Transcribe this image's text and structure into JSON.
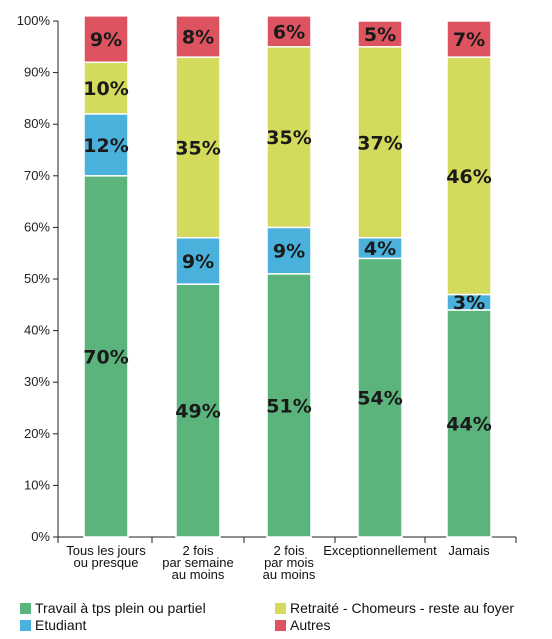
{
  "chart_data": {
    "type": "bar",
    "stacked": true,
    "categories": [
      [
        "Tous les jours",
        "ou presque"
      ],
      [
        "2 fois",
        "par semaine",
        "au moins"
      ],
      [
        "2 fois",
        "par mois",
        "au moins"
      ],
      [
        "Exceptionnellement"
      ],
      [
        "Jamais"
      ]
    ],
    "series": [
      {
        "name": "Travail à tps plein ou partiel",
        "color": "#5bb47b",
        "values": [
          70,
          49,
          51,
          54,
          44
        ],
        "labels": [
          "70%",
          "49%",
          "51%",
          "54%",
          "44%"
        ]
      },
      {
        "name": "Etudiant",
        "color": "#4ab1dc",
        "values": [
          12,
          9,
          9,
          4,
          3
        ],
        "labels": [
          "12%",
          "9%",
          "9%",
          "4%",
          "3%"
        ]
      },
      {
        "name": "Retraité - Chomeurs - reste au foyer",
        "color": "#d4da5c",
        "values": [
          10,
          35,
          35,
          37,
          46
        ],
        "labels": [
          "10%",
          "35%",
          "35%",
          "37%",
          "46%"
        ]
      },
      {
        "name": "Autres",
        "color": "#dd5460",
        "values": [
          9,
          8,
          6,
          5,
          7
        ],
        "labels": [
          "9%",
          "8%",
          "6%",
          "5%",
          "7%"
        ]
      }
    ],
    "yticks": [
      "0%",
      "10%",
      "20%",
      "30%",
      "40%",
      "50%",
      "60%",
      "70%",
      "80%",
      "90%",
      "100%"
    ],
    "ylim": [
      0,
      100
    ],
    "grid": false,
    "legend_position": "bottom"
  }
}
